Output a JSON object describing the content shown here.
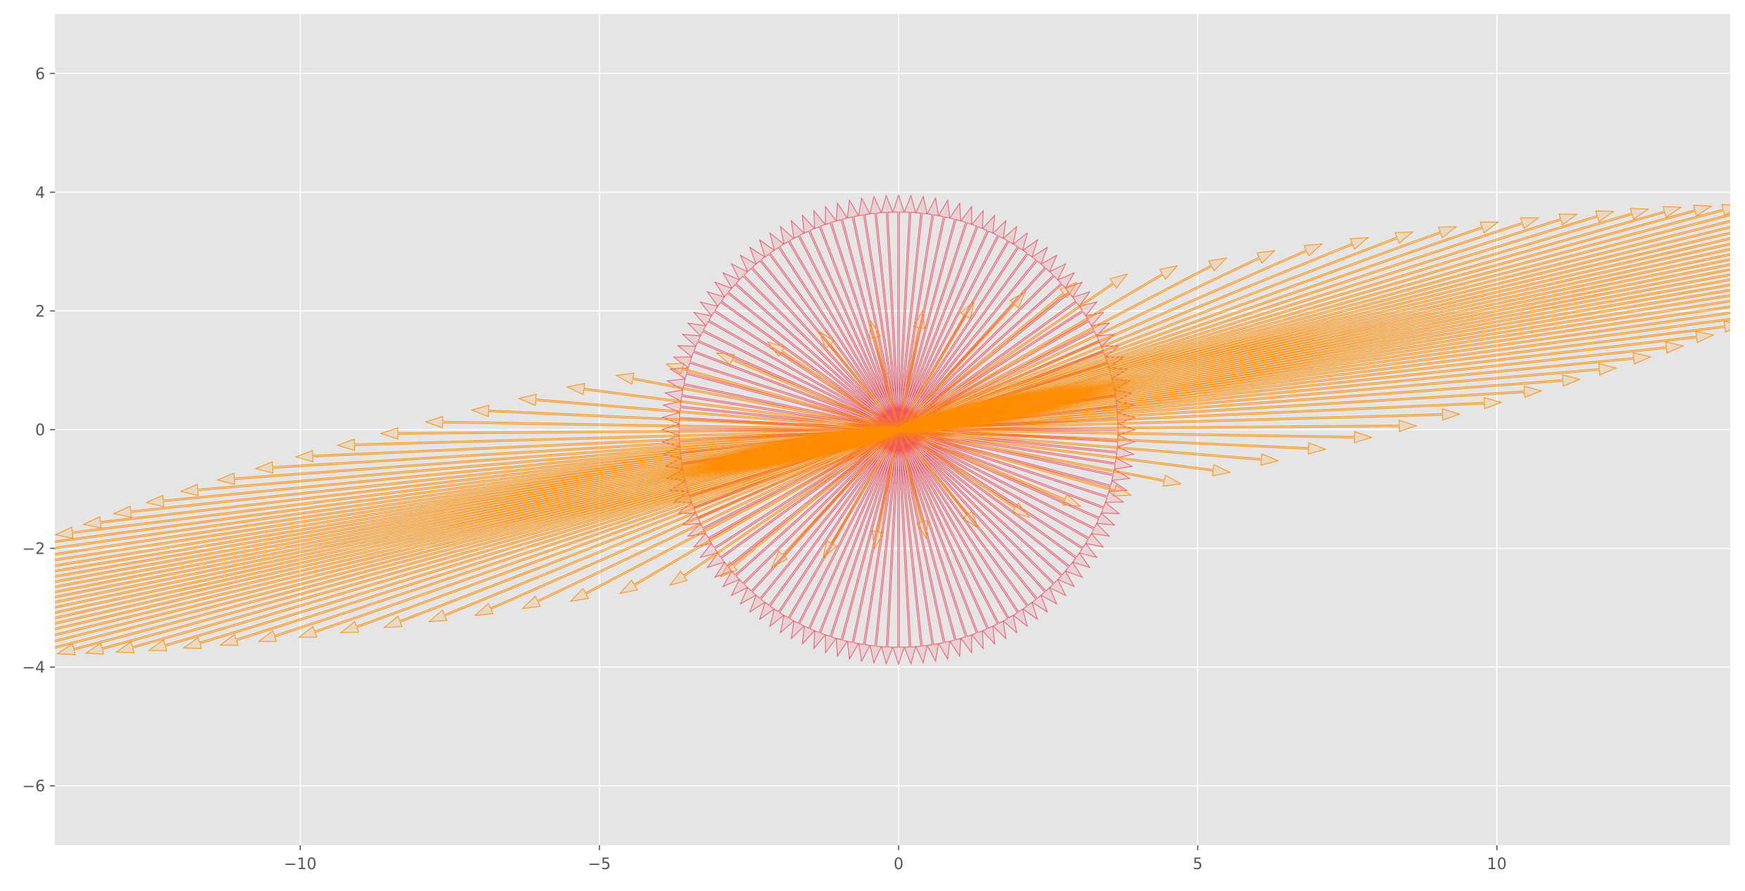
{
  "chart_data": {
    "type": "quiver",
    "title": "",
    "xlabel": "",
    "ylabel": "",
    "xlim": [
      -14.1,
      13.9
    ],
    "ylim": [
      -7,
      7
    ],
    "x_ticks": [
      -10,
      -5,
      0,
      5,
      10
    ],
    "y_ticks": [
      -6,
      -4,
      -2,
      0,
      2,
      4,
      6
    ],
    "x_tick_labels": [
      "−10",
      "−5",
      "0",
      "5",
      "10"
    ],
    "y_tick_labels": [
      "−6",
      "−4",
      "−2",
      "0",
      "2",
      "4",
      "6"
    ],
    "grid": true,
    "background": "#e5e5e5",
    "grid_color": "#ffffff",
    "series": [
      {
        "kind": "unit-circle vectors",
        "color": "#ee5566",
        "origin": [
          0,
          0
        ],
        "count": 120,
        "radius": 3.95
      },
      {
        "kind": "linearly transformed vectors",
        "color": "#ff8c00",
        "origin": [
          0,
          0
        ],
        "count": 120,
        "transform_matrix": [
          [
            0.4,
            16.5
          ],
          [
            2.0,
            3.2
          ]
        ],
        "input_radius": 1.0
      }
    ]
  }
}
